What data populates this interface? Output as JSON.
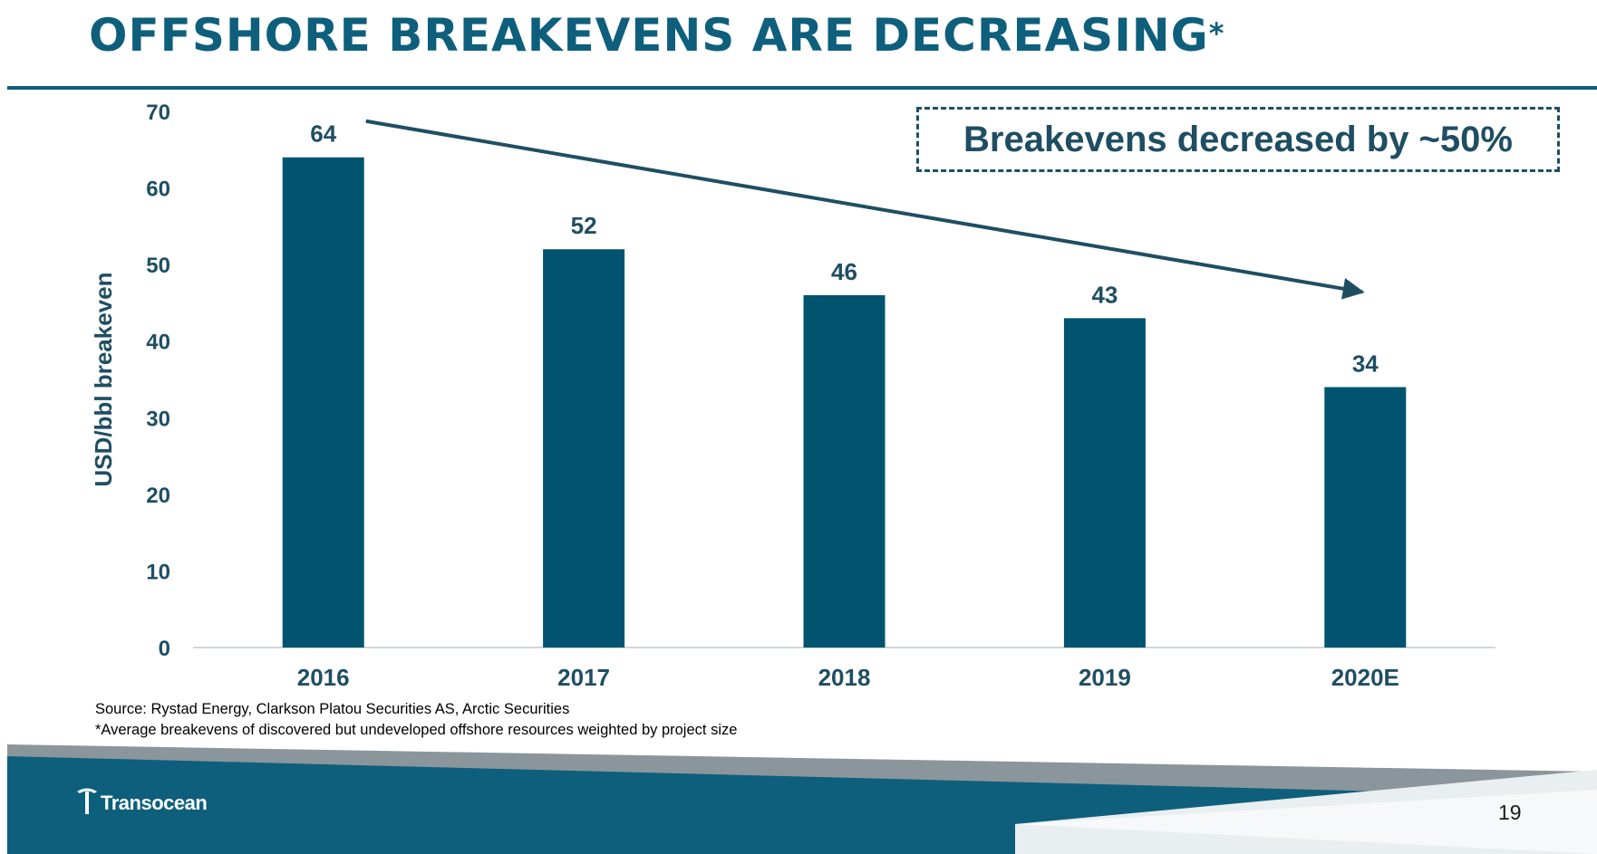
{
  "slide": {
    "title": "OFFSHORE BREAKEVENS ARE DECREASING",
    "title_asterisk": "*",
    "callout": "Breakevens decreased by ~50%",
    "source": "Source: Rystad Energy, Clarkson Platou Securities AS, Arctic Securities",
    "footnote": "*Average breakevens of discovered but undeveloped offshore resources weighted by project size",
    "page_number": "19",
    "logo_text": "Transocean"
  },
  "colors": {
    "title": "#0e5f7c",
    "bar": "#005470",
    "axis_text": "#1f4e63",
    "footer_band": "#0e5f7c",
    "footer_swoosh": "#7f8c93"
  },
  "icons": {
    "logo": "transocean-t-logo-icon",
    "trend": "trend-arrow"
  },
  "chart_data": {
    "type": "bar",
    "title": "OFFSHORE BREAKEVENS ARE DECREASING*",
    "xlabel": "",
    "ylabel": "USD/bbl breakeven",
    "categories": [
      "2016",
      "2017",
      "2018",
      "2019",
      "2020E"
    ],
    "values": [
      64,
      52,
      46,
      43,
      34
    ],
    "ylim": [
      0,
      70
    ],
    "yticks": [
      0,
      10,
      20,
      30,
      40,
      50,
      60,
      70
    ],
    "grid": false,
    "legend": "none",
    "annotations": [
      {
        "type": "arrow",
        "from_category": "2016",
        "to_category": "2020E",
        "label": "Breakevens decreased by ~50%"
      }
    ]
  }
}
